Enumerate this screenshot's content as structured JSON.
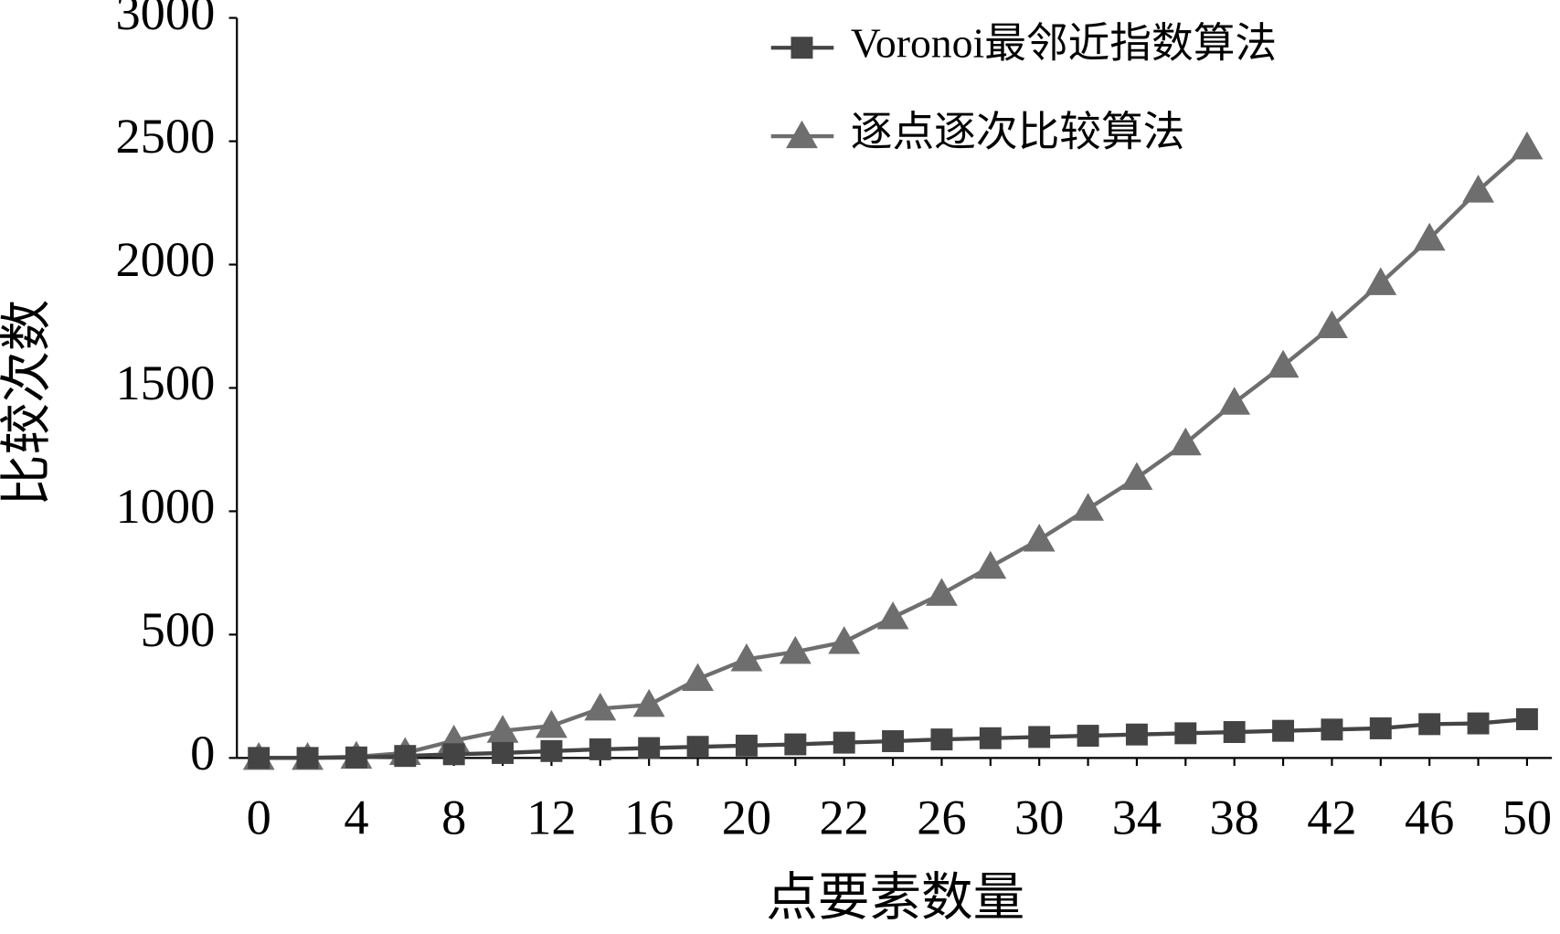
{
  "chart_data": {
    "type": "line",
    "x_label": "点要素数量",
    "y_label": "比较次数",
    "categories": [
      "0",
      null,
      "4",
      null,
      "8",
      null,
      "12",
      null,
      "16",
      null,
      "20",
      null,
      "22",
      null,
      "26",
      null,
      "30",
      null,
      "34",
      null,
      "38",
      null,
      "42",
      null,
      "46",
      null,
      "50"
    ],
    "ylim": [
      0,
      3000
    ],
    "yticks": [
      0,
      500,
      1000,
      1500,
      2000,
      2500,
      3000
    ],
    "legend": "top-right",
    "series": [
      {
        "name": "Voronoi最邻近指数算法",
        "color": "#444444",
        "marker": "square",
        "values": [
          0,
          0,
          2,
          8,
          15,
          20,
          28,
          35,
          40,
          45,
          50,
          55,
          62,
          68,
          75,
          80,
          85,
          90,
          95,
          100,
          105,
          110,
          115,
          120,
          137,
          140,
          157
        ]
      },
      {
        "name": "逐点逐次比较算法",
        "color": "#6e6e6e",
        "marker": "triangle",
        "values": [
          0,
          0,
          5,
          20,
          70,
          110,
          130,
          200,
          215,
          320,
          400,
          430,
          470,
          570,
          665,
          775,
          885,
          1010,
          1135,
          1275,
          1440,
          1590,
          1750,
          1925,
          2105,
          2300,
          2475
        ]
      }
    ]
  }
}
